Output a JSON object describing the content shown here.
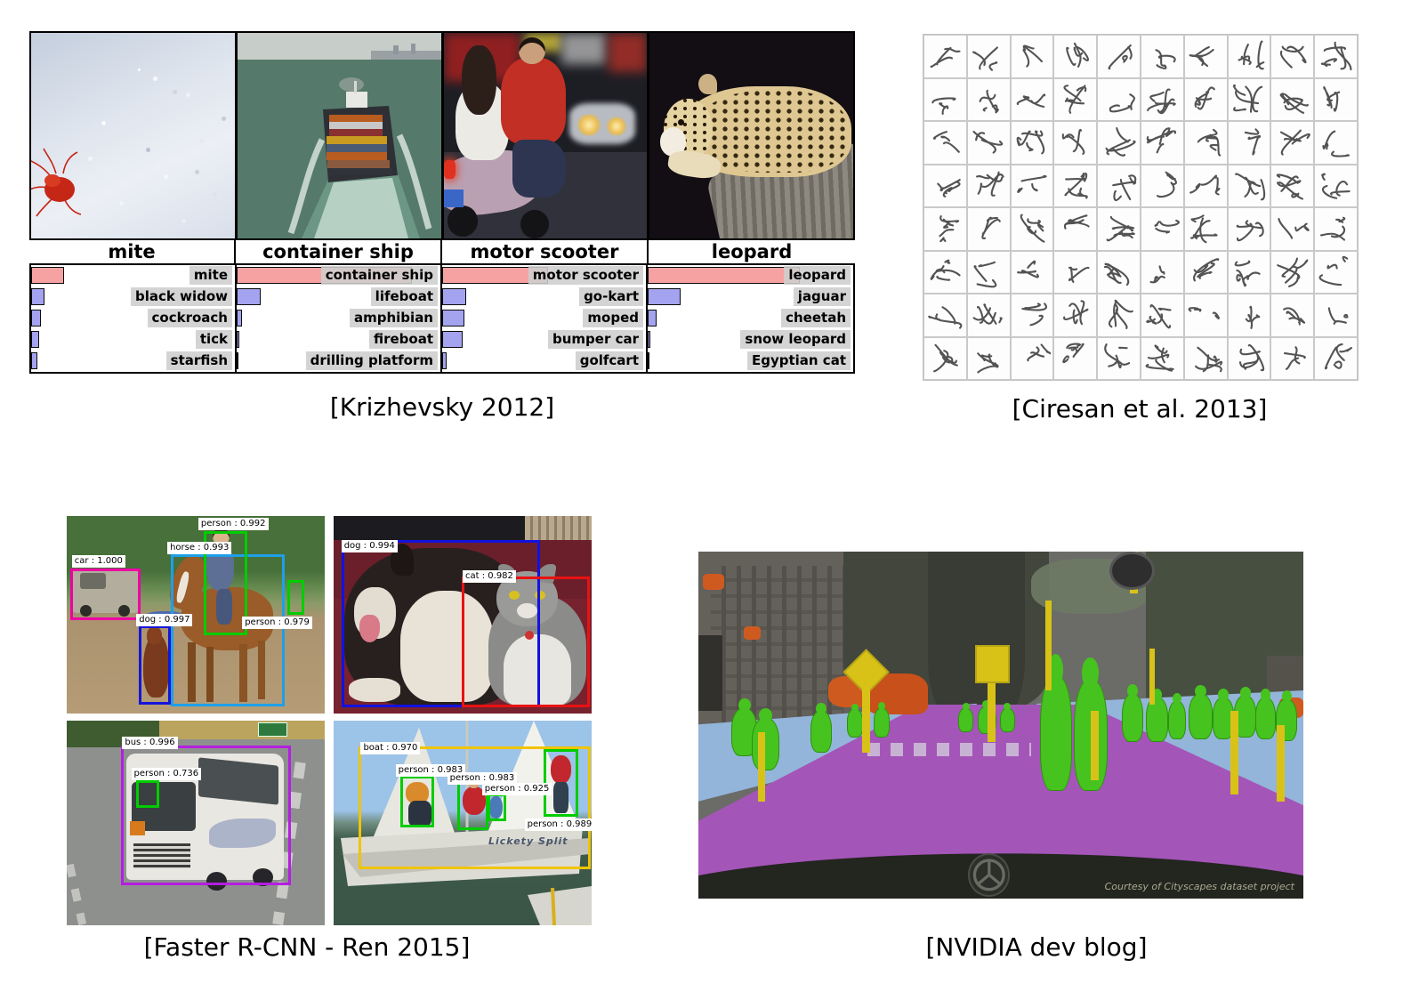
{
  "figures": {
    "alexnet": {
      "caption": "[Krizhevsky 2012]",
      "colors": {
        "correct_bar": "#f7a2a2",
        "other_bar": "#a3a3ef",
        "label_bg": "#cecece"
      }
    },
    "ciresan": {
      "caption": "[Ciresan et al. 2013]",
      "description": "Grid of handwritten Chinese character samples",
      "grid": {
        "rows": 8,
        "cols": 10
      },
      "characters_rows": [
        "汗汉夯杭航壕嚎豪毫郝",
        "洪宏弘红喉侯猴吼厚候",
        "换患唤痪豢焕涣宦幻荒",
        "浑混豁活伙火获或惑霍",
        "绩季伎祭剂悸济寄寂计",
        "柬碱殓拣捡笕俭剪减荐",
        "娇嚼搅铰矫侥脚狡角饺",
        "巾金今津襟紧锦仅谨进"
      ]
    },
    "faster_rcnn": {
      "caption": "[Faster R-CNN - Ren 2015]",
      "images": [
        {
          "name": "horse-rider-scene",
          "detections": [
            {
              "label": "car : 1.000",
              "color": "#ee00a4"
            },
            {
              "label": "horse : 0.993",
              "color": "#1e9fe8"
            },
            {
              "label": "person : 0.992",
              "color": "#00cc00"
            },
            {
              "label": "dog : 0.997",
              "color": "#1515d8"
            },
            {
              "label": "person : 0.979",
              "color": "#00cc00"
            }
          ]
        },
        {
          "name": "dog-cat-scene",
          "detections": [
            {
              "label": "dog : 0.994",
              "color": "#1212e0"
            },
            {
              "label": "cat : 0.982",
              "color": "#e81212"
            }
          ]
        },
        {
          "name": "bus-scene",
          "detections": [
            {
              "label": "bus : 0.996",
              "color": "#b41ee0"
            },
            {
              "label": "person : 0.736",
              "color": "#00cc00"
            }
          ]
        },
        {
          "name": "sailboat-scene",
          "boat_name": "Lickety Split",
          "detections": [
            {
              "label": "boat : 0.970",
              "color": "#f0c400"
            },
            {
              "label": "person : 0.983",
              "color": "#00cc00"
            },
            {
              "label": "person : 0.983",
              "color": "#00cc00"
            },
            {
              "label": "person : 0.925",
              "color": "#00cc00"
            },
            {
              "label": "person : 0.989",
              "color": "#00cc00"
            }
          ]
        }
      ]
    },
    "nvidia": {
      "caption": "[NVIDIA dev blog]",
      "watermark": "Courtesy of Cityscapes dataset project",
      "segmentation_colors": {
        "road": "#a455b8",
        "sidewalk": "#93b5d9",
        "person": "#46c31e",
        "pole_sign": "#d9c218",
        "vehicle": "#cf5a1f",
        "building": "#64605a",
        "vegetation": "#42463c"
      }
    }
  },
  "chart_data": [
    {
      "type": "bar",
      "orientation": "horizontal",
      "title": "mite",
      "categories": [
        "mite",
        "black widow",
        "cockroach",
        "tick",
        "starfish"
      ],
      "values": [
        0.16,
        0.065,
        0.05,
        0.04,
        0.03
      ],
      "highlight_index": 0,
      "xlim": [
        0,
        1
      ]
    },
    {
      "type": "bar",
      "orientation": "horizontal",
      "title": "container ship",
      "categories": [
        "container ship",
        "lifeboat",
        "amphibian",
        "fireboat",
        "drilling platform"
      ],
      "values": [
        0.86,
        0.12,
        0.025,
        0.015,
        0.01
      ],
      "highlight_index": 0,
      "xlim": [
        0,
        1
      ]
    },
    {
      "type": "bar",
      "orientation": "horizontal",
      "title": "motor scooter",
      "categories": [
        "motor scooter",
        "go-kart",
        "moped",
        "bumper car",
        "golfcart"
      ],
      "values": [
        0.52,
        0.12,
        0.11,
        0.1,
        0.02
      ],
      "highlight_index": 0,
      "xlim": [
        0,
        1
      ]
    },
    {
      "type": "bar",
      "orientation": "horizontal",
      "title": "leopard",
      "categories": [
        "leopard",
        "jaguar",
        "cheetah",
        "snow leopard",
        "Egyptian cat"
      ],
      "values": [
        0.74,
        0.16,
        0.045,
        0.015,
        0.008
      ],
      "highlight_index": 0,
      "xlim": [
        0,
        1
      ]
    }
  ]
}
